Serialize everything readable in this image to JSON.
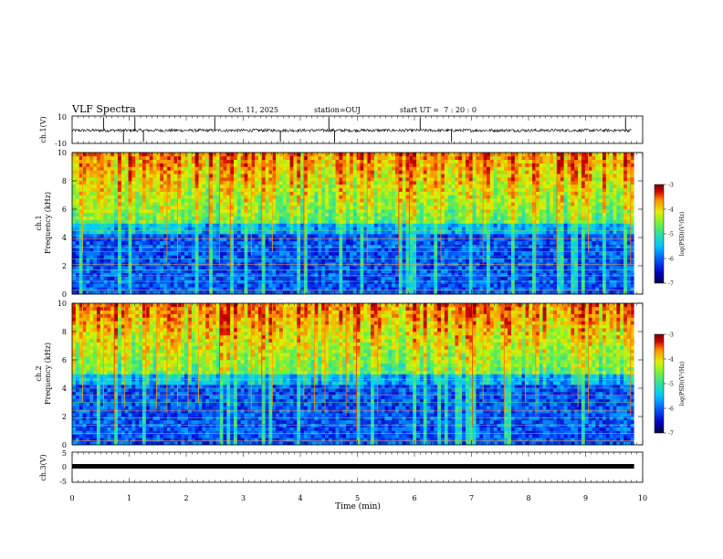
{
  "header": {
    "title": "VLF Spectra",
    "date": "Oct. 11, 2025",
    "station": "station=OUJ",
    "start_ut": "start UT =  7 : 20 : 0"
  },
  "colors": {
    "background": "#ffffff",
    "waveform": "#000000",
    "colormap": [
      "#000040",
      "#0000c8",
      "#0060ff",
      "#00c8ff",
      "#30e0a0",
      "#70f040",
      "#e0f000",
      "#ff9000",
      "#d00000",
      "#700000"
    ]
  },
  "chart_data": [
    {
      "type": "line",
      "panel": "waveform-ch1",
      "ylabel": "ch.1(V)",
      "ylim": [
        -10,
        10
      ],
      "yticks": [
        "10",
        "-10"
      ],
      "xlim": [
        0,
        10
      ],
      "x_unit": "min",
      "baseline": -0.5,
      "spike_times_min": [
        0.55,
        0.9,
        1.1,
        1.25,
        2.5,
        3.65,
        4.5,
        4.6,
        6.1,
        6.65,
        9.7
      ]
    },
    {
      "type": "heatmap",
      "panel": "spectrogram-ch1",
      "ylabel": "ch.1\nFrequency (kHz)",
      "ylim": [
        0,
        10
      ],
      "yticks": [
        "0",
        "2",
        "4",
        "6",
        "8",
        "10"
      ],
      "xlim": [
        0,
        10
      ],
      "data_end_min": 9.85,
      "colorbar": {
        "label": "log(PSD)(V²/Hz)",
        "range": [
          -7,
          -3
        ],
        "ticks": [
          "-3",
          "-4",
          "-5",
          "-6",
          "-7"
        ]
      },
      "noise_bands_khz": [
        0.3,
        0.9,
        1.3,
        1.7,
        2.1,
        2.5,
        3.0,
        3.3,
        3.9,
        4.5
      ]
    },
    {
      "type": "heatmap",
      "panel": "spectrogram-ch2",
      "ylabel": "ch.2\nFrequency (kHz)",
      "ylim": [
        0,
        10
      ],
      "yticks": [
        "0",
        "2",
        "4",
        "6",
        "8",
        "10"
      ],
      "xlim": [
        0,
        10
      ],
      "data_end_min": 9.85,
      "colorbar": {
        "label": "log(PSD)(V²/Hz)",
        "range": [
          -7,
          -3
        ],
        "ticks": [
          "-3",
          "-4",
          "-5",
          "-6",
          "-7"
        ]
      },
      "noise_bands_khz": [
        0.3,
        0.8,
        1.4,
        1.9,
        2.4,
        3.0,
        3.5,
        4.0,
        4.6,
        5.2
      ]
    },
    {
      "type": "line",
      "panel": "waveform-ch3",
      "ylabel": "ch.3(V)",
      "ylim": [
        -5,
        5
      ],
      "yticks": [
        "5",
        "0",
        "-5"
      ],
      "xlim": [
        0,
        10
      ],
      "baseline": 0.3,
      "xlabel": "Time (min)",
      "xticks": [
        "0",
        "1",
        "2",
        "3",
        "4",
        "5",
        "6",
        "7",
        "8",
        "9",
        "10"
      ]
    }
  ]
}
